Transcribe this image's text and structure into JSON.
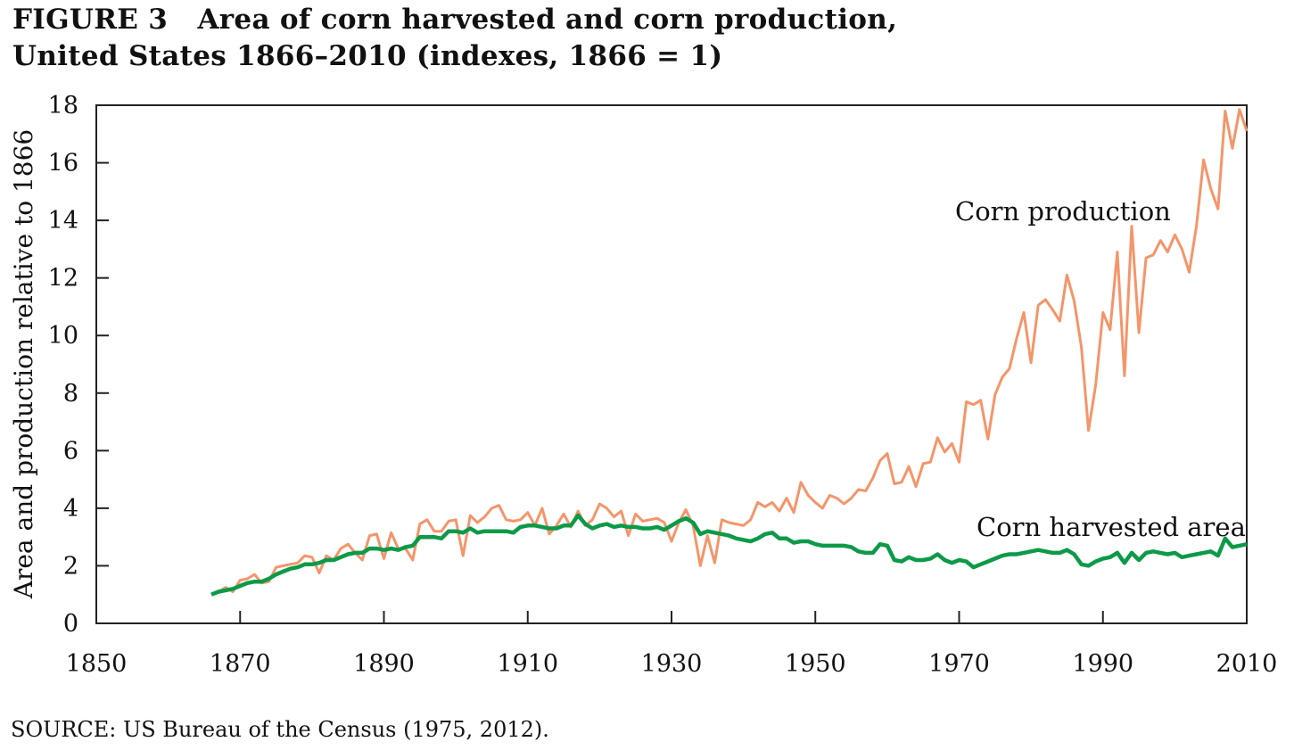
{
  "figure": {
    "title_line1": "FIGURE 3   Area of corn harvested and corn production,",
    "title_line2": "United States 1866–2010 (indexes, 1866 = 1)",
    "source": "SOURCE: US Bureau of the Census (1975, 2012)."
  },
  "chart_data": {
    "type": "line",
    "title": "Area of corn harvested and corn production, United States 1866–2010 (indexes, 1866 = 1)",
    "xlabel": "",
    "ylabel": "Area and production relative to 1866",
    "xlim": [
      1850,
      2010
    ],
    "ylim": [
      0,
      18
    ],
    "xticks": [
      1850,
      1870,
      1890,
      1910,
      1930,
      1950,
      1970,
      1990,
      2010
    ],
    "yticks": [
      0,
      2,
      4,
      6,
      8,
      10,
      12,
      14,
      16,
      18
    ],
    "grid": false,
    "legend": "inline labels",
    "x_start": 1866,
    "x_end": 2010,
    "series": [
      {
        "name": "Corn production",
        "color": "#f4956a",
        "values": [
          1.0,
          1.1,
          1.25,
          1.1,
          1.5,
          1.55,
          1.7,
          1.4,
          1.45,
          1.95,
          2.0,
          2.05,
          2.1,
          2.35,
          2.3,
          1.75,
          2.35,
          2.2,
          2.6,
          2.75,
          2.45,
          2.2,
          3.05,
          3.1,
          2.25,
          3.15,
          2.6,
          2.6,
          2.2,
          3.45,
          3.6,
          3.2,
          3.2,
          3.55,
          3.6,
          2.35,
          3.75,
          3.5,
          3.7,
          4.0,
          4.1,
          3.6,
          3.55,
          3.6,
          3.85,
          3.4,
          4.0,
          3.1,
          3.4,
          3.8,
          3.35,
          3.9,
          3.4,
          3.6,
          4.15,
          4.0,
          3.7,
          3.9,
          3.05,
          3.8,
          3.55,
          3.6,
          3.65,
          3.5,
          2.85,
          3.5,
          3.95,
          3.4,
          2.0,
          3.05,
          2.1,
          3.6,
          3.5,
          3.45,
          3.4,
          3.6,
          4.2,
          4.05,
          4.2,
          3.9,
          4.35,
          3.85,
          4.9,
          4.45,
          4.2,
          4.0,
          4.45,
          4.35,
          4.15,
          4.35,
          4.65,
          4.6,
          5.05,
          5.65,
          5.9,
          4.85,
          4.9,
          5.45,
          4.75,
          5.55,
          5.6,
          6.45,
          5.95,
          6.25,
          5.6,
          7.7,
          7.6,
          7.75,
          6.4,
          7.95,
          8.55,
          8.85,
          9.9,
          10.8,
          9.05,
          11.05,
          11.25,
          10.9,
          10.5,
          12.1,
          11.2,
          9.6,
          6.7,
          8.3,
          10.8,
          10.2,
          12.9,
          8.6,
          13.8,
          10.1,
          12.7,
          12.8,
          13.3,
          12.9,
          13.5,
          13.0,
          12.2,
          13.8,
          16.1,
          15.1,
          14.4,
          17.8,
          16.5,
          17.85,
          17.1
        ]
      },
      {
        "name": "Corn harvested area",
        "color": "#0d9a48",
        "values": [
          1.0,
          1.1,
          1.15,
          1.2,
          1.3,
          1.4,
          1.45,
          1.45,
          1.55,
          1.7,
          1.8,
          1.9,
          1.95,
          2.05,
          2.05,
          2.1,
          2.2,
          2.2,
          2.3,
          2.4,
          2.45,
          2.45,
          2.6,
          2.6,
          2.55,
          2.6,
          2.55,
          2.65,
          2.7,
          3.0,
          3.0,
          3.0,
          2.95,
          3.2,
          3.2,
          3.15,
          3.3,
          3.15,
          3.2,
          3.2,
          3.2,
          3.2,
          3.15,
          3.35,
          3.4,
          3.4,
          3.35,
          3.3,
          3.3,
          3.4,
          3.4,
          3.75,
          3.45,
          3.3,
          3.4,
          3.45,
          3.35,
          3.4,
          3.35,
          3.35,
          3.3,
          3.3,
          3.35,
          3.25,
          3.4,
          3.55,
          3.65,
          3.5,
          3.1,
          3.2,
          3.15,
          3.1,
          3.05,
          2.95,
          2.9,
          2.85,
          2.95,
          3.1,
          3.15,
          2.95,
          2.95,
          2.8,
          2.85,
          2.85,
          2.75,
          2.7,
          2.7,
          2.7,
          2.7,
          2.65,
          2.5,
          2.45,
          2.45,
          2.75,
          2.7,
          2.2,
          2.15,
          2.3,
          2.2,
          2.2,
          2.25,
          2.4,
          2.2,
          2.1,
          2.2,
          2.15,
          1.95,
          2.05,
          2.15,
          2.25,
          2.35,
          2.4,
          2.4,
          2.45,
          2.5,
          2.55,
          2.5,
          2.45,
          2.45,
          2.55,
          2.4,
          2.05,
          2.0,
          2.15,
          2.25,
          2.3,
          2.45,
          2.1,
          2.45,
          2.2,
          2.45,
          2.5,
          2.45,
          2.4,
          2.45,
          2.3,
          2.35,
          2.4,
          2.45,
          2.5,
          2.35,
          2.95,
          2.65,
          2.7,
          2.75
        ]
      }
    ]
  }
}
